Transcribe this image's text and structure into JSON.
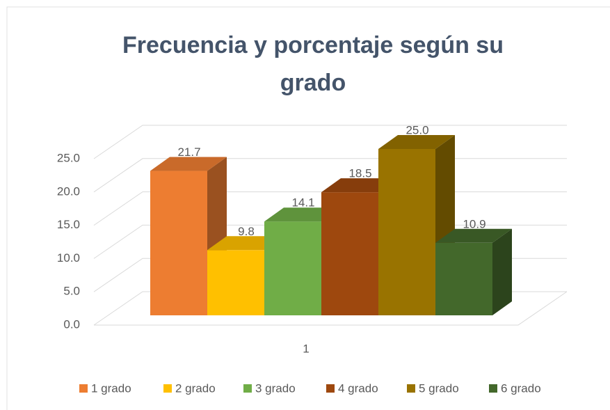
{
  "chart_data": {
    "type": "bar3d",
    "title": "Frecuencia y porcentaje según su grado",
    "categories": [
      "1"
    ],
    "series": [
      {
        "name": "1 grado",
        "color": "#ed7d31",
        "values": [
          21.7
        ],
        "value_labels": [
          "21.7"
        ]
      },
      {
        "name": "2 grado",
        "color": "#ffc000",
        "values": [
          9.8
        ],
        "value_labels": [
          "9.8"
        ]
      },
      {
        "name": "3 grado",
        "color": "#70ad47",
        "values": [
          14.1
        ],
        "value_labels": [
          "14.1"
        ]
      },
      {
        "name": "4 grado",
        "color": "#9e480e",
        "values": [
          18.5
        ],
        "value_labels": [
          "18.5"
        ]
      },
      {
        "name": "5 grado",
        "color": "#997300",
        "values": [
          25.0
        ],
        "value_labels": [
          "25.0"
        ]
      },
      {
        "name": "6 grado",
        "color": "#43682b",
        "values": [
          10.9
        ],
        "value_labels": [
          "10.9"
        ]
      }
    ],
    "ylim": [
      0,
      25
    ],
    "yticks": [
      {
        "value": 0,
        "label": "0.0"
      },
      {
        "value": 5,
        "label": "5.0"
      },
      {
        "value": 10,
        "label": "10.0"
      },
      {
        "value": 15,
        "label": "15.0"
      },
      {
        "value": 20,
        "label": "20.0"
      },
      {
        "value": 25,
        "label": "25.0"
      }
    ],
    "grid": true,
    "legend": "bottom"
  }
}
